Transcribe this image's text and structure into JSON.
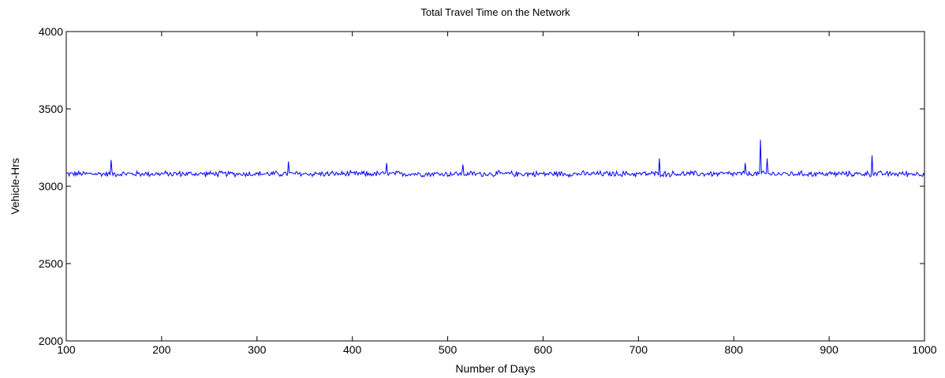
{
  "chart_data": {
    "type": "line",
    "title": "Total Travel Time on the Network",
    "xlabel": "Number of Days",
    "ylabel": "Vehicle-Hrs",
    "xlim": [
      100,
      1000
    ],
    "ylim": [
      2000,
      4000
    ],
    "xticks": [
      100,
      200,
      300,
      400,
      500,
      600,
      700,
      800,
      900,
      1000
    ],
    "yticks": [
      2000,
      2500,
      3000,
      3500,
      4000
    ],
    "xtick_labels": [
      "100",
      "200",
      "300",
      "400",
      "500",
      "600",
      "700",
      "800",
      "900",
      "1000"
    ],
    "ytick_labels": [
      "2000",
      "2500",
      "3000",
      "3500",
      "4000"
    ],
    "grid": false,
    "legend": "none",
    "series": [
      {
        "color": "#0000ff",
        "baseline": 3080,
        "noise_amplitude": 22,
        "peaks": [
          {
            "x": 147,
            "y": 3170
          },
          {
            "x": 333,
            "y": 3160
          },
          {
            "x": 436,
            "y": 3150
          },
          {
            "x": 516,
            "y": 3140
          },
          {
            "x": 722,
            "y": 3180
          },
          {
            "x": 812,
            "y": 3150
          },
          {
            "x": 828,
            "y": 3300
          },
          {
            "x": 835,
            "y": 3180
          },
          {
            "x": 945,
            "y": 3200
          }
        ]
      }
    ]
  }
}
